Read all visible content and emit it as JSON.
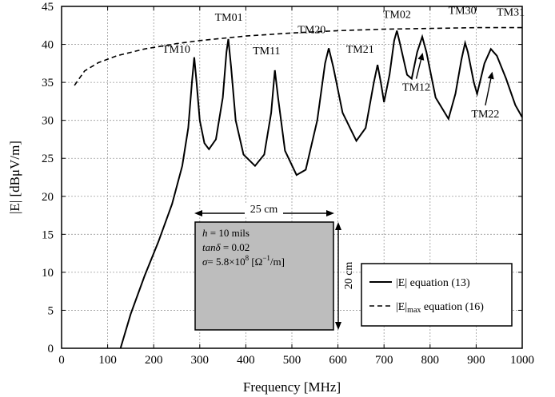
{
  "chart_data": {
    "type": "line",
    "title": "",
    "xlabel": "Frequency [MHz]",
    "ylabel": "|E| [dBμV/m]",
    "xlim": [
      0,
      1000
    ],
    "ylim": [
      0,
      45
    ],
    "xticks": [
      0,
      100,
      200,
      300,
      400,
      500,
      600,
      700,
      800,
      900,
      1000
    ],
    "yticks": [
      0,
      5,
      10,
      15,
      20,
      25,
      30,
      35,
      40,
      45
    ],
    "grid": true,
    "legend_position": "bottom-right",
    "series": [
      {
        "name": "|E| equation (13)",
        "style": "solid",
        "color": "#000000",
        "points": [
          [
            128,
            0
          ],
          [
            150,
            4.5
          ],
          [
            180,
            9.5
          ],
          [
            210,
            14
          ],
          [
            240,
            19
          ],
          [
            262,
            24
          ],
          [
            275,
            29
          ],
          [
            283,
            35
          ],
          [
            288,
            38.3
          ],
          [
            293,
            35
          ],
          [
            300,
            30
          ],
          [
            310,
            27
          ],
          [
            320,
            26.2
          ],
          [
            335,
            27.5
          ],
          [
            350,
            33
          ],
          [
            358,
            39
          ],
          [
            362,
            40.7
          ],
          [
            368,
            37
          ],
          [
            378,
            30
          ],
          [
            395,
            25.5
          ],
          [
            420,
            24
          ],
          [
            440,
            25.5
          ],
          [
            455,
            31
          ],
          [
            463,
            36.6
          ],
          [
            470,
            33
          ],
          [
            485,
            26
          ],
          [
            510,
            22.8
          ],
          [
            530,
            23.5
          ],
          [
            555,
            30
          ],
          [
            572,
            37.5
          ],
          [
            580,
            39.5
          ],
          [
            590,
            37
          ],
          [
            610,
            31
          ],
          [
            640,
            27.3
          ],
          [
            660,
            29
          ],
          [
            678,
            35
          ],
          [
            686,
            37.3
          ],
          [
            693,
            35
          ],
          [
            700,
            32.4
          ],
          [
            712,
            36
          ],
          [
            722,
            40.5
          ],
          [
            728,
            41.8
          ],
          [
            735,
            40
          ],
          [
            750,
            36
          ],
          [
            760,
            35.5
          ],
          [
            772,
            39
          ],
          [
            783,
            41
          ],
          [
            792,
            39
          ],
          [
            812,
            33
          ],
          [
            840,
            30.2
          ],
          [
            855,
            33.5
          ],
          [
            868,
            38
          ],
          [
            876,
            40.2
          ],
          [
            882,
            39
          ],
          [
            895,
            35
          ],
          [
            902,
            33.5
          ],
          [
            918,
            37.5
          ],
          [
            932,
            39.4
          ],
          [
            945,
            38.5
          ],
          [
            965,
            35.5
          ],
          [
            985,
            32
          ],
          [
            1000,
            30.4
          ]
        ]
      },
      {
        "name": "|E|max equation (16)",
        "style": "dashed",
        "color": "#000000",
        "points": [
          [
            28,
            34.6
          ],
          [
            50,
            36.5
          ],
          [
            80,
            37.6
          ],
          [
            120,
            38.5
          ],
          [
            180,
            39.4
          ],
          [
            250,
            40.1
          ],
          [
            300,
            40.5
          ],
          [
            400,
            41.1
          ],
          [
            500,
            41.5
          ],
          [
            600,
            41.8
          ],
          [
            700,
            42
          ],
          [
            800,
            42.1
          ],
          [
            900,
            42.2
          ],
          [
            1000,
            42.2
          ]
        ]
      }
    ],
    "annotations": [
      {
        "text": "TM10",
        "x": 249,
        "y": 38.9
      },
      {
        "text": "TM01",
        "x": 363,
        "y": 43.1
      },
      {
        "text": "TM11",
        "x": 445,
        "y": 38.7
      },
      {
        "text": "TM20",
        "x": 543,
        "y": 41.5
      },
      {
        "text": "TM21",
        "x": 648,
        "y": 38.9
      },
      {
        "text": "TM02",
        "x": 728,
        "y": 43.5
      },
      {
        "text": "TM30",
        "x": 870,
        "y": 44.0
      },
      {
        "text": "TM31",
        "x": 975,
        "y": 43.8
      },
      {
        "text": "TM12",
        "x": 770,
        "y": 33.9,
        "arrow_to": [
          784,
          38.9
        ]
      },
      {
        "text": "TM22",
        "x": 920,
        "y": 30.4,
        "arrow_to": [
          935,
          36.4
        ]
      }
    ],
    "inset": {
      "line1_var": "h",
      "line1_rest": " = 10 mils",
      "line2_var": "tanδ",
      "line2_rest": " =  0.02",
      "line3_var": "σ",
      "line3_rest_a": "= 5.8×10",
      "line3_exp1": "8",
      "line3_rest_b": " [Ω",
      "line3_exp2": "−1",
      "line3_rest_c": "/m]",
      "width_label": "25 cm",
      "height_label": "20 cm",
      "fill_color": "#bdbdbd"
    },
    "legend": {
      "solid_main": "|E| equation (13)",
      "dashed_main": "|E|",
      "dashed_sub": "max",
      "dashed_rest": " equation (16)"
    }
  }
}
